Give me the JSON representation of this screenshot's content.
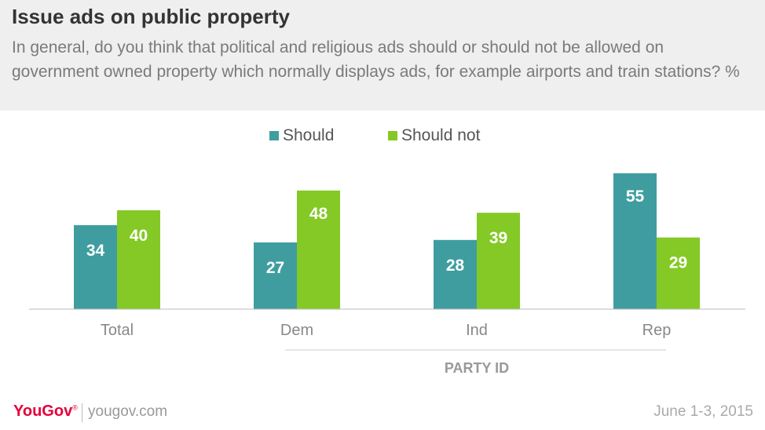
{
  "header": {
    "title": "Issue ads on public property",
    "subtitle": "In general, do you think that political and religious ads should or should not be allowed on government owned property which normally displays ads, for example airports and train stations? %"
  },
  "chart_data": {
    "type": "bar",
    "categories": [
      "Total",
      "Dem",
      "Ind",
      "Rep"
    ],
    "series": [
      {
        "name": "Should",
        "values": [
          34,
          27,
          28,
          55
        ],
        "color": "#3f9d9f"
      },
      {
        "name": "Should not",
        "values": [
          40,
          48,
          39,
          29
        ],
        "color": "#84c925"
      }
    ],
    "group_label": "PARTY ID",
    "legend_position": "top-center",
    "ylim": [
      0,
      60
    ],
    "grid": false
  },
  "footer": {
    "brand": "YouGov",
    "url": "yougov.com",
    "date": "June 1-3, 2015"
  }
}
